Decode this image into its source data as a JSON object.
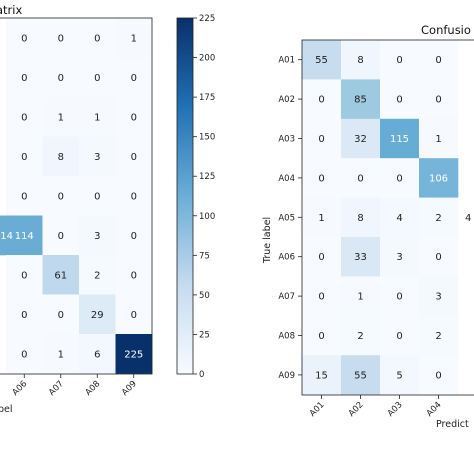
{
  "charts": {
    "left": {
      "title_fragment": "atrix",
      "xlabel_fragment": "bel",
      "x_tick_labels": [
        "A06",
        "A07",
        "A08",
        "A09"
      ],
      "colorbar_ticks": [
        "225",
        "200",
        "175",
        "150",
        "125",
        "100",
        "75",
        "50",
        "25",
        "0"
      ]
    },
    "right": {
      "title_fragment": "Confusio",
      "ylabel": "True label",
      "xlabel_fragment": "Predict",
      "y_tick_labels": [
        "A01",
        "A02",
        "A03",
        "A04",
        "A05",
        "A06",
        "A07",
        "A08",
        "A09"
      ],
      "x_tick_labels": [
        "A01",
        "A02",
        "A03",
        "A04"
      ]
    }
  },
  "chart_data": [
    {
      "type": "heatmap",
      "title": "atrix",
      "xlabel": "bel",
      "colormap": "Blues",
      "vmin": 0,
      "vmax": 225,
      "colorbar_ticks": [
        0,
        25,
        50,
        75,
        100,
        125,
        150,
        175,
        200,
        225
      ],
      "partial_first_column_values": [
        null,
        null,
        null,
        null,
        null,
        "114",
        null,
        null,
        null
      ],
      "columns": [
        "A06",
        "A07",
        "A08",
        "A09"
      ],
      "values": [
        [
          0,
          0,
          0,
          1
        ],
        [
          0,
          0,
          0,
          0
        ],
        [
          0,
          1,
          1,
          0
        ],
        [
          0,
          8,
          3,
          0
        ],
        [
          0,
          0,
          0,
          0
        ],
        [
          114,
          0,
          3,
          0
        ],
        [
          0,
          61,
          2,
          0
        ],
        [
          0,
          0,
          29,
          0
        ],
        [
          0,
          1,
          6,
          225
        ]
      ]
    },
    {
      "type": "heatmap",
      "title": "Confusio",
      "ylabel": "True label",
      "xlabel": "Predict",
      "colormap": "Blues",
      "vmin": 0,
      "vmax": 225,
      "rows": [
        "A01",
        "A02",
        "A03",
        "A04",
        "A05",
        "A06",
        "A07",
        "A08",
        "A09"
      ],
      "columns": [
        "A01",
        "A02",
        "A03",
        "A04"
      ],
      "values": [
        [
          55,
          8,
          0,
          0
        ],
        [
          0,
          85,
          0,
          0
        ],
        [
          0,
          32,
          115,
          1
        ],
        [
          0,
          0,
          0,
          106
        ],
        [
          1,
          8,
          4,
          2
        ],
        [
          0,
          33,
          3,
          0
        ],
        [
          0,
          1,
          0,
          3
        ],
        [
          0,
          2,
          0,
          2
        ],
        [
          15,
          55,
          5,
          0
        ]
      ],
      "partial_last_column_values": [
        null,
        null,
        null,
        null,
        "4",
        null,
        null,
        null,
        null
      ]
    }
  ]
}
